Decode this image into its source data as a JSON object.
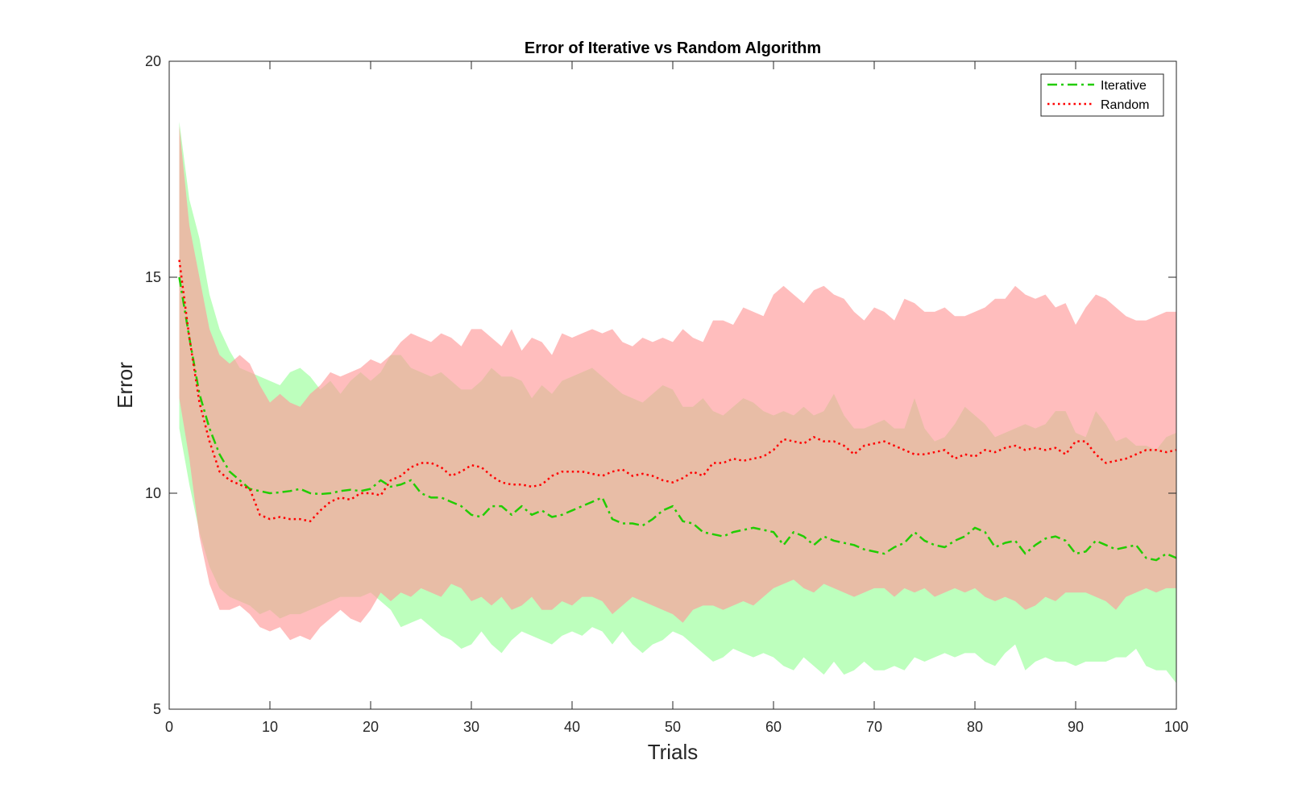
{
  "chart_data": {
    "type": "line",
    "title": "Error of Iterative vs Random Algorithm",
    "xlabel": "Trials",
    "ylabel": "Error",
    "xlim": [
      0,
      100
    ],
    "ylim": [
      5,
      20
    ],
    "xticks": [
      0,
      10,
      20,
      30,
      40,
      50,
      60,
      70,
      80,
      90,
      100
    ],
    "yticks": [
      5,
      10,
      15,
      20
    ],
    "legend_placement": "top-right",
    "grid": false,
    "colors": {
      "iterative_line": "#22cc00",
      "random_line": "#ff0000",
      "iterative_band": "#99ff99",
      "random_band": "#ff9999"
    },
    "series": [
      {
        "name": "Iterative",
        "style": "dash-dot",
        "x_start": 1,
        "mean": [
          15.0,
          13.6,
          12.3,
          11.5,
          10.9,
          10.5,
          10.3,
          10.1,
          10.05,
          10.0,
          10.02,
          10.05,
          10.1,
          10.0,
          9.98,
          10.0,
          10.05,
          10.08,
          10.05,
          10.1,
          10.3,
          10.15,
          10.2,
          10.3,
          10.0,
          9.9,
          9.9,
          9.8,
          9.7,
          9.5,
          9.45,
          9.7,
          9.7,
          9.5,
          9.7,
          9.5,
          9.6,
          9.45,
          9.5,
          9.6,
          9.7,
          9.8,
          9.9,
          9.4,
          9.3,
          9.3,
          9.25,
          9.4,
          9.6,
          9.7,
          9.35,
          9.3,
          9.1,
          9.05,
          9.0,
          9.1,
          9.15,
          9.2,
          9.15,
          9.1,
          8.8,
          9.1,
          9.0,
          8.8,
          9.0,
          8.9,
          8.85,
          8.8,
          8.7,
          8.65,
          8.6,
          8.75,
          8.85,
          9.1,
          8.9,
          8.8,
          8.75,
          8.9,
          9.0,
          9.2,
          9.1,
          8.75,
          8.85,
          8.9,
          8.6,
          8.8,
          8.95,
          9.0,
          8.9,
          8.6,
          8.65,
          8.9,
          8.8,
          8.7,
          8.75,
          8.8,
          8.5,
          8.45,
          8.6,
          8.5
        ],
        "upper": [
          18.6,
          16.8,
          15.9,
          14.6,
          13.8,
          13.3,
          12.9,
          12.8,
          12.7,
          12.6,
          12.5,
          12.8,
          12.9,
          12.7,
          12.4,
          12.6,
          12.3,
          12.6,
          12.8,
          12.6,
          12.8,
          13.2,
          13.2,
          12.9,
          12.8,
          12.7,
          12.8,
          12.6,
          12.4,
          12.4,
          12.6,
          12.9,
          12.7,
          12.7,
          12.6,
          12.2,
          12.5,
          12.3,
          12.6,
          12.7,
          12.8,
          12.9,
          12.7,
          12.5,
          12.3,
          12.2,
          12.1,
          12.3,
          12.5,
          12.4,
          12.0,
          12.0,
          12.2,
          11.9,
          11.8,
          12.0,
          12.2,
          12.1,
          11.9,
          11.8,
          11.9,
          11.8,
          12.0,
          11.8,
          11.9,
          12.3,
          11.8,
          11.5,
          11.5,
          11.6,
          11.7,
          11.5,
          11.5,
          12.2,
          11.5,
          11.2,
          11.3,
          11.6,
          12.0,
          11.8,
          11.6,
          11.3,
          11.4,
          11.5,
          11.6,
          11.5,
          11.6,
          11.9,
          11.9,
          11.4,
          11.3,
          11.9,
          11.6,
          11.2,
          11.3,
          11.1,
          11.1,
          11.0,
          11.3,
          11.4
        ],
        "lower": [
          11.5,
          10.2,
          9.1,
          8.3,
          7.8,
          7.6,
          7.5,
          7.4,
          7.2,
          7.3,
          7.1,
          7.2,
          7.2,
          7.3,
          7.4,
          7.5,
          7.6,
          7.6,
          7.6,
          7.7,
          7.5,
          7.3,
          6.9,
          7.0,
          7.1,
          6.9,
          6.7,
          6.6,
          6.4,
          6.5,
          6.8,
          6.5,
          6.3,
          6.6,
          6.8,
          6.7,
          6.6,
          6.5,
          6.7,
          6.8,
          6.7,
          6.9,
          6.8,
          6.5,
          6.8,
          6.5,
          6.3,
          6.5,
          6.6,
          6.8,
          6.7,
          6.5,
          6.3,
          6.1,
          6.2,
          6.4,
          6.3,
          6.2,
          6.3,
          6.2,
          6.0,
          5.9,
          6.2,
          6.0,
          5.8,
          6.1,
          5.8,
          5.9,
          6.1,
          5.9,
          5.9,
          6.0,
          5.9,
          6.2,
          6.1,
          6.2,
          6.3,
          6.2,
          6.3,
          6.3,
          6.1,
          6.0,
          6.3,
          6.5,
          5.9,
          6.1,
          6.2,
          6.1,
          6.1,
          6.0,
          6.1,
          6.1,
          6.1,
          6.2,
          6.2,
          6.4,
          6.0,
          5.9,
          5.9,
          5.6
        ]
      },
      {
        "name": "Random",
        "style": "dotted",
        "x_start": 1,
        "mean": [
          15.4,
          13.6,
          12.1,
          11.2,
          10.5,
          10.3,
          10.2,
          10.1,
          9.5,
          9.4,
          9.45,
          9.4,
          9.4,
          9.35,
          9.6,
          9.8,
          9.9,
          9.85,
          10.0,
          10.0,
          9.95,
          10.3,
          10.4,
          10.6,
          10.7,
          10.7,
          10.6,
          10.4,
          10.5,
          10.65,
          10.6,
          10.4,
          10.25,
          10.2,
          10.2,
          10.15,
          10.2,
          10.4,
          10.5,
          10.5,
          10.5,
          10.45,
          10.4,
          10.5,
          10.55,
          10.4,
          10.45,
          10.4,
          10.3,
          10.25,
          10.35,
          10.5,
          10.4,
          10.7,
          10.7,
          10.8,
          10.75,
          10.8,
          10.85,
          11.0,
          11.25,
          11.2,
          11.15,
          11.3,
          11.2,
          11.2,
          11.1,
          10.9,
          11.1,
          11.15,
          11.2,
          11.1,
          11.0,
          10.9,
          10.9,
          10.95,
          11.0,
          10.8,
          10.9,
          10.85,
          11.0,
          10.95,
          11.05,
          11.1,
          11.0,
          11.05,
          11.0,
          11.05,
          10.9,
          11.2,
          11.2,
          10.9,
          10.7,
          10.75,
          10.8,
          10.9,
          11.0,
          11.0,
          10.95,
          11.0
        ],
        "upper": [
          18.5,
          16.2,
          15.0,
          13.8,
          13.2,
          13.0,
          13.2,
          13.0,
          12.5,
          12.1,
          12.3,
          12.1,
          12.0,
          12.3,
          12.5,
          12.8,
          12.7,
          12.8,
          12.9,
          13.1,
          13.0,
          13.2,
          13.5,
          13.7,
          13.6,
          13.5,
          13.7,
          13.6,
          13.4,
          13.8,
          13.8,
          13.6,
          13.4,
          13.8,
          13.3,
          13.6,
          13.5,
          13.2,
          13.7,
          13.6,
          13.7,
          13.8,
          13.7,
          13.8,
          13.5,
          13.4,
          13.6,
          13.5,
          13.6,
          13.5,
          13.8,
          13.6,
          13.5,
          14.0,
          14.0,
          13.9,
          14.3,
          14.2,
          14.1,
          14.6,
          14.8,
          14.6,
          14.4,
          14.7,
          14.8,
          14.6,
          14.5,
          14.2,
          14.0,
          14.3,
          14.2,
          14.0,
          14.5,
          14.4,
          14.2,
          14.2,
          14.3,
          14.1,
          14.1,
          14.2,
          14.3,
          14.5,
          14.5,
          14.8,
          14.6,
          14.5,
          14.6,
          14.3,
          14.4,
          13.9,
          14.3,
          14.6,
          14.5,
          14.3,
          14.1,
          14.0,
          14.0,
          14.1,
          14.2,
          14.2
        ],
        "lower": [
          12.2,
          10.8,
          9.0,
          7.9,
          7.3,
          7.3,
          7.4,
          7.2,
          6.9,
          6.8,
          6.9,
          6.6,
          6.7,
          6.6,
          6.9,
          7.1,
          7.3,
          7.1,
          7.0,
          7.3,
          7.7,
          7.5,
          7.7,
          7.6,
          7.8,
          7.7,
          7.6,
          7.9,
          7.8,
          7.5,
          7.6,
          7.4,
          7.6,
          7.3,
          7.4,
          7.6,
          7.3,
          7.3,
          7.5,
          7.4,
          7.6,
          7.6,
          7.5,
          7.2,
          7.4,
          7.6,
          7.5,
          7.4,
          7.3,
          7.2,
          7.0,
          7.3,
          7.4,
          7.4,
          7.3,
          7.4,
          7.5,
          7.4,
          7.6,
          7.8,
          7.9,
          8.0,
          7.8,
          7.7,
          7.9,
          7.8,
          7.7,
          7.6,
          7.7,
          7.8,
          7.8,
          7.6,
          7.8,
          7.7,
          7.8,
          7.6,
          7.7,
          7.8,
          7.7,
          7.8,
          7.6,
          7.5,
          7.6,
          7.5,
          7.3,
          7.4,
          7.6,
          7.5,
          7.7,
          7.7,
          7.7,
          7.6,
          7.5,
          7.3,
          7.6,
          7.7,
          7.8,
          7.7,
          7.8,
          7.8
        ]
      }
    ]
  }
}
